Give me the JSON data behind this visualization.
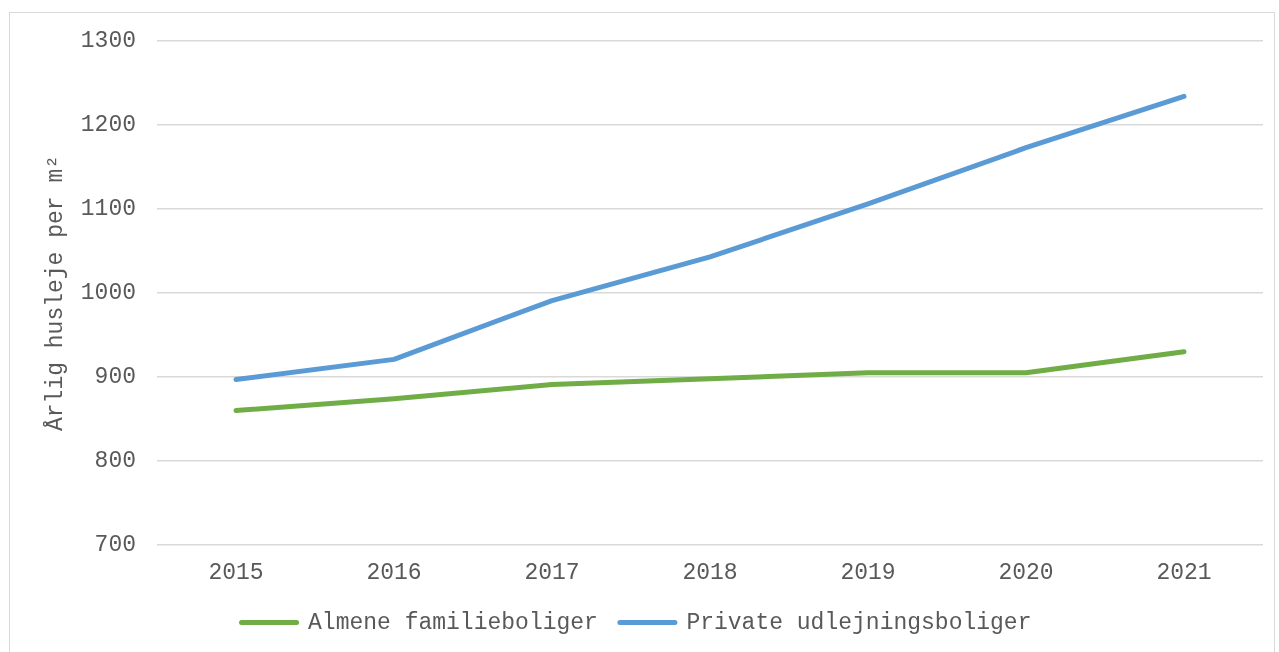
{
  "chart_data": {
    "type": "line",
    "ylabel": "Årlig husleje per m²",
    "categories": [
      "2015",
      "2016",
      "2017",
      "2018",
      "2019",
      "2020",
      "2021"
    ],
    "series": [
      {
        "name": "Almene familieboliger",
        "color": "#70ad47",
        "values": [
          860,
          874,
          891,
          898,
          905,
          905,
          930
        ]
      },
      {
        "name": "Private udlejningsboliger",
        "color": "#5b9bd5",
        "values": [
          897,
          921,
          991,
          1043,
          1106,
          1173,
          1234
        ]
      }
    ],
    "ylim": [
      700,
      1300
    ],
    "yticks": [
      700,
      800,
      900,
      1000,
      1100,
      1200,
      1300
    ],
    "grid": "y",
    "legend": "bottom",
    "marker": "none",
    "line_style": "solid"
  }
}
